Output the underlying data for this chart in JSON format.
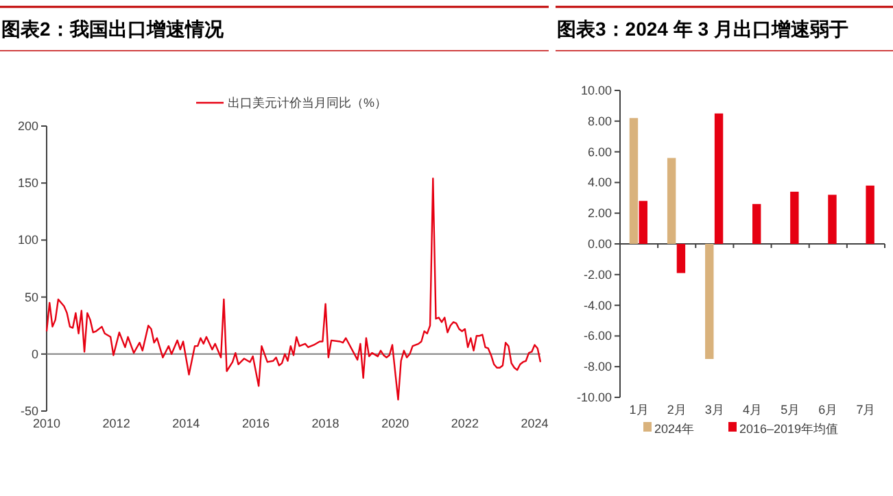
{
  "chart_data": [
    {
      "type": "line",
      "title": "图表2：我国出口增速情况",
      "legend": "top",
      "xlim": [
        "2010-01",
        "2024-03"
      ],
      "ylim": [
        -50,
        200
      ],
      "xticks": [
        "2010",
        "2012",
        "2014",
        "2016",
        "2018",
        "2020",
        "2022",
        "2024"
      ],
      "yticks": [
        -50,
        0,
        50,
        100,
        150,
        200
      ],
      "ref_lines": [
        {
          "axis": "y",
          "value": 0,
          "color": "#808080"
        }
      ],
      "x": [
        "2010-01",
        "2010-02",
        "2010-03",
        "2010-04",
        "2010-05",
        "2010-07",
        "2010-08",
        "2010-09",
        "2010-10",
        "2010-11",
        "2010-12",
        "2011-01",
        "2011-02",
        "2011-03",
        "2011-04",
        "2011-05",
        "2011-06",
        "2011-08",
        "2011-09",
        "2011-11",
        "2011-12",
        "2012-02",
        "2012-04",
        "2012-05",
        "2012-07",
        "2012-09",
        "2012-10",
        "2012-12",
        "2013-01",
        "2013-02",
        "2013-03",
        "2013-05",
        "2013-07",
        "2013-08",
        "2013-10",
        "2013-11",
        "2013-12",
        "2014-02",
        "2014-04",
        "2014-05",
        "2014-06",
        "2014-07",
        "2014-08",
        "2014-10",
        "2014-11",
        "2015-01",
        "2015-02",
        "2015-03",
        "2015-05",
        "2015-06",
        "2015-07",
        "2015-09",
        "2015-11",
        "2015-12",
        "2016-02",
        "2016-03",
        "2016-05",
        "2016-07",
        "2016-08",
        "2016-09",
        "2016-10",
        "2016-11",
        "2016-12",
        "2017-01",
        "2017-02",
        "2017-03",
        "2017-04",
        "2017-06",
        "2017-07",
        "2017-09",
        "2017-11",
        "2017-12",
        "2018-01",
        "2018-02",
        "2018-03",
        "2018-06",
        "2018-07",
        "2018-08",
        "2018-12",
        "2019-01",
        "2019-02",
        "2019-03",
        "2019-04",
        "2019-05",
        "2019-07",
        "2019-08",
        "2019-09",
        "2019-10",
        "2019-11",
        "2019-12",
        "2020-02",
        "2020-03",
        "2020-04",
        "2020-05",
        "2020-06",
        "2020-07",
        "2020-09",
        "2020-10",
        "2020-11",
        "2020-12",
        "2021-01",
        "2021-02",
        "2021-03",
        "2021-04",
        "2021-05",
        "2021-06",
        "2021-07",
        "2021-08",
        "2021-09",
        "2021-10",
        "2021-11",
        "2021-12",
        "2022-01",
        "2022-02",
        "2022-03",
        "2022-04",
        "2022-05",
        "2022-06",
        "2022-07",
        "2022-08",
        "2022-09",
        "2022-10",
        "2022-11",
        "2022-12",
        "2023-01",
        "2023-02",
        "2023-03",
        "2023-04",
        "2023-05",
        "2023-06",
        "2023-07",
        "2023-08",
        "2023-09",
        "2023-10",
        "2023-11",
        "2023-12",
        "2024-01",
        "2024-02",
        "2024-03"
      ],
      "series": [
        {
          "name": "出口美元计价当月同比（%）",
          "color": "#e60012",
          "values": [
            20,
            45,
            24,
            30,
            48,
            42,
            36,
            24,
            23,
            36,
            18,
            38,
            2,
            36,
            30,
            19,
            20,
            24,
            18,
            15,
            -1,
            19,
            6,
            15,
            1,
            10,
            3,
            25,
            22,
            10,
            14,
            -3,
            7,
            0,
            12,
            4,
            11,
            -18,
            7,
            7,
            14,
            9,
            15,
            4,
            9,
            -3,
            48,
            -15,
            -7,
            1,
            -9,
            -4,
            -7,
            -2,
            -28,
            7,
            -7,
            -6,
            -3,
            -10,
            -8,
            0,
            -6,
            7,
            -1,
            15,
            7,
            9,
            6,
            8,
            11,
            11,
            44,
            -3,
            12,
            11,
            10,
            14,
            -5,
            9,
            -21,
            14,
            -2,
            1,
            -2,
            3,
            -1,
            -3,
            -1,
            8,
            -40,
            -6,
            3,
            -3,
            0,
            7,
            9,
            11,
            20,
            18,
            25,
            154,
            31,
            32,
            28,
            32,
            19,
            25,
            28,
            27,
            22,
            20,
            22,
            6,
            14,
            3,
            16,
            16,
            17,
            6,
            5,
            -1,
            -9,
            -12,
            -12,
            -10,
            10,
            7,
            -8,
            -12,
            -14,
            -9,
            -7,
            -6,
            1,
            2,
            8,
            5,
            -7
          ]
        }
      ]
    },
    {
      "type": "bar",
      "title": "图表3：2024 年 3 月出口增速弱于",
      "legend": "bottom",
      "ylim": [
        -10,
        10
      ],
      "yticks": [
        {
          "value": -10,
          "label": "-10.00"
        },
        {
          "value": -8,
          "label": "-8.00"
        },
        {
          "value": -6,
          "label": "-6.00"
        },
        {
          "value": -4,
          "label": "-4.00"
        },
        {
          "value": -2,
          "label": "-2.00"
        },
        {
          "value": 0,
          "label": "0.00"
        },
        {
          "value": 2,
          "label": "2.00"
        },
        {
          "value": 4,
          "label": "4.00"
        },
        {
          "value": 6,
          "label": "6.00"
        },
        {
          "value": 8,
          "label": "8.00"
        },
        {
          "value": 10,
          "label": "10.00"
        }
      ],
      "categories": [
        "1月",
        "2月",
        "3月",
        "4月",
        "5月",
        "6月",
        "7月"
      ],
      "series": [
        {
          "name": "2024年",
          "color": "#d9b27c",
          "values": [
            8.2,
            5.6,
            -7.5,
            null,
            null,
            null,
            null
          ]
        },
        {
          "name": "2016–2019年均值",
          "color": "#e60012",
          "values": [
            2.8,
            -1.9,
            8.5,
            2.6,
            3.4,
            3.2,
            3.8
          ]
        }
      ]
    }
  ]
}
